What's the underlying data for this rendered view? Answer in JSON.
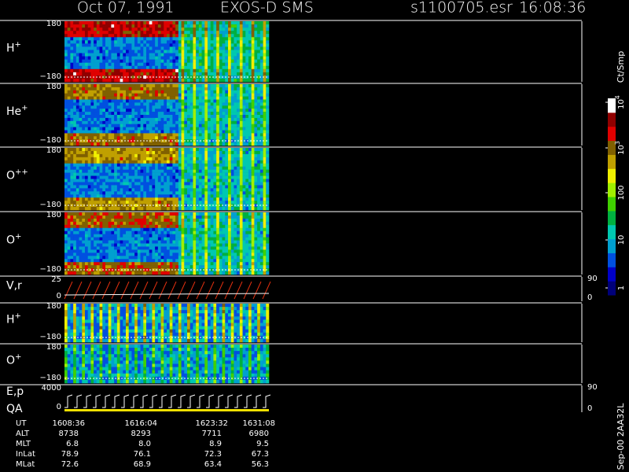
{
  "header": {
    "date": "Oct 07, 1991",
    "instrument": "EXOS-D SMS",
    "file": "s1100705.esr",
    "time": "16:08:36"
  },
  "panels": [
    {
      "label": "H",
      "sup": "+",
      "top": "180",
      "bottom": "−180"
    },
    {
      "label": "He",
      "sup": "+",
      "top": "180",
      "bottom": "−180"
    },
    {
      "label": "O",
      "sup": "++",
      "top": "180",
      "bottom": "−180"
    },
    {
      "label": "O",
      "sup": "+",
      "top": "180",
      "bottom": "−180"
    },
    {
      "label": "V,r",
      "top": "25",
      "bottom": "0",
      "right_top": "90",
      "right_bottom": "0"
    },
    {
      "label": "H",
      "sup": "+",
      "top": "180",
      "bottom": "−180"
    },
    {
      "label": "O",
      "sup": "+",
      "top": "180",
      "bottom": "−180"
    },
    {
      "label": "E,p",
      "label2": "QA",
      "top": "4000",
      "bottom": "0",
      "right_top": "90",
      "right_bottom": "0"
    }
  ],
  "colorbar": {
    "unit": "Ct/Smp",
    "ticks": [
      {
        "base": "10",
        "exp": "4"
      },
      {
        "base": "10",
        "exp": "3"
      },
      {
        "base": "100"
      },
      {
        "base": "10"
      },
      {
        "base": "1"
      }
    ]
  },
  "table": {
    "rows": [
      [
        "UT",
        "1608:36",
        "1616:04",
        "1623:32",
        "1631:08"
      ],
      [
        "ALT",
        "8738",
        "8293",
        "7711",
        "6980"
      ],
      [
        "MLT",
        "6.8",
        "8.0",
        "8.9",
        "9.5"
      ],
      [
        "InLat",
        "78.9",
        "76.1",
        "72.3",
        "67.3"
      ],
      [
        "MLat",
        "72.6",
        "68.9",
        "63.4",
        "56.3"
      ]
    ]
  },
  "footer": "Sep-00 2AA32L"
}
